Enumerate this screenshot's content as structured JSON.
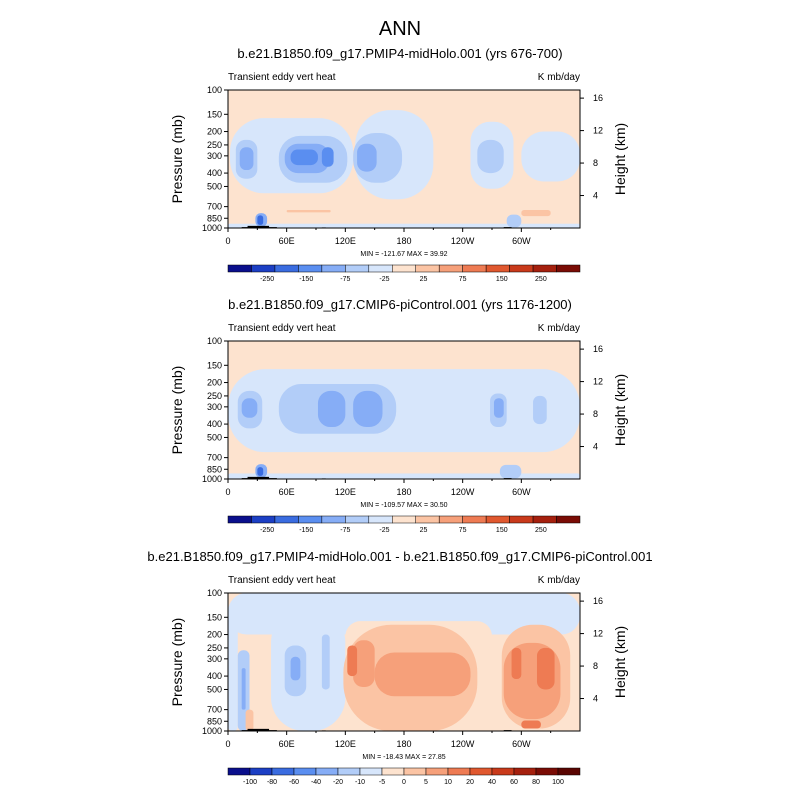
{
  "figure_title": "ANN",
  "chart_data": [
    {
      "type": "heatmap",
      "title": "b.e21.B1850.f09_g17.PMIP4-midHolo.001 (yrs 676-700)",
      "left_label": "Transient eddy vert heat",
      "right_label": "K mb/day",
      "ylabel": "Pressure (mb)",
      "ylabel_right": "Height (km)",
      "x_ticks": [
        "0",
        "60E",
        "120E",
        "180",
        "120W",
        "60W"
      ],
      "y_ticks": [
        "100",
        "150",
        "200",
        "250",
        "300",
        "400",
        "500",
        "700",
        "850",
        "1000"
      ],
      "height_ticks": [
        "16",
        "12",
        "8",
        "4"
      ],
      "stats": "MIN = -121.67  MAX =  39.92",
      "colorbar_labels": [
        "-250",
        "-150",
        "-75",
        "-25",
        "25",
        "75",
        "150",
        "250"
      ],
      "colorbar_colors": [
        "#0a0f8c",
        "#1c3fc4",
        "#3a6ce0",
        "#5a8ef0",
        "#86adf6",
        "#b2cdf8",
        "#d7e6fb",
        "#fde3cf",
        "#fbc4a4",
        "#f6a07a",
        "#ee7b53",
        "#e0582f",
        "#c93a1b",
        "#a5200e",
        "#7a0c05"
      ],
      "xlim": [
        0,
        360
      ],
      "ylim": [
        1000,
        100
      ],
      "background": "#fde3cf",
      "features": [
        {
          "lon": [
            0,
            360
          ],
          "p": [
            930,
            1000
          ],
          "color": "#d7e6fb"
        },
        {
          "lon": [
            0,
            360
          ],
          "p": [
            850,
            930
          ],
          "color": "#fde3cf"
        },
        {
          "lon": [
            2,
            128
          ],
          "p": [
            160,
            560
          ],
          "color": "#d7e6fb"
        },
        {
          "lon": [
            130,
            210
          ],
          "p": [
            140,
            620
          ],
          "color": "#d7e6fb"
        },
        {
          "lon": [
            248,
            292
          ],
          "p": [
            170,
            520
          ],
          "color": "#d7e6fb"
        },
        {
          "lon": [
            300,
            360
          ],
          "p": [
            200,
            460
          ],
          "color": "#d7e6fb"
        },
        {
          "lon": [
            8,
            30
          ],
          "p": [
            230,
            440
          ],
          "color": "#b2cdf8"
        },
        {
          "lon": [
            52,
            122
          ],
          "p": [
            215,
            470
          ],
          "color": "#b2cdf8"
        },
        {
          "lon": [
            128,
            178
          ],
          "p": [
            205,
            470
          ],
          "color": "#b2cdf8"
        },
        {
          "lon": [
            255,
            282
          ],
          "p": [
            230,
            400
          ],
          "color": "#b2cdf8"
        },
        {
          "lon": [
            12,
            26
          ],
          "p": [
            260,
            380
          ],
          "color": "#86adf6"
        },
        {
          "lon": [
            58,
            104
          ],
          "p": [
            245,
            400
          ],
          "color": "#86adf6"
        },
        {
          "lon": [
            132,
            152
          ],
          "p": [
            245,
            390
          ],
          "color": "#86adf6"
        },
        {
          "lon": [
            64,
            92
          ],
          "p": [
            270,
            350
          ],
          "color": "#5a8ef0"
        },
        {
          "lon": [
            96,
            108
          ],
          "p": [
            260,
            360
          ],
          "color": "#5a8ef0"
        },
        {
          "lon": [
            28,
            40
          ],
          "p": [
            780,
            980
          ],
          "color": "#86adf6"
        },
        {
          "lon": [
            30,
            36
          ],
          "p": [
            810,
            950
          ],
          "color": "#3a6ce0"
        },
        {
          "lon": [
            285,
            300
          ],
          "p": [
            800,
            990
          ],
          "color": "#b2cdf8"
        },
        {
          "lon": [
            60,
            105
          ],
          "p": [
            740,
            770
          ],
          "color": "#fbc4a4"
        },
        {
          "lon": [
            300,
            330
          ],
          "p": [
            740,
            820
          ],
          "color": "#fbc4a4"
        }
      ],
      "topography": [
        {
          "lon": [
            20,
            42
          ],
          "p": [
            965,
            1000
          ]
        },
        {
          "lon": [
            14,
            50
          ],
          "p": [
            985,
            1000
          ]
        },
        {
          "lon": [
            282,
            290
          ],
          "p": [
            985,
            1000
          ]
        },
        {
          "lon": [
            96,
            100
          ],
          "p": [
            990,
            1000
          ]
        }
      ]
    },
    {
      "type": "heatmap",
      "title": "b.e21.B1850.f09_g17.CMIP6-piControl.001 (yrs 1176-1200)",
      "left_label": "Transient eddy vert heat",
      "right_label": "K mb/day",
      "ylabel": "Pressure (mb)",
      "ylabel_right": "Height (km)",
      "x_ticks": [
        "0",
        "60E",
        "120E",
        "180",
        "120W",
        "60W"
      ],
      "y_ticks": [
        "100",
        "150",
        "200",
        "250",
        "300",
        "400",
        "500",
        "700",
        "850",
        "1000"
      ],
      "height_ticks": [
        "16",
        "12",
        "8",
        "4"
      ],
      "stats": "MIN = -109.57  MAX =  30.50",
      "colorbar_labels": [
        "-250",
        "-150",
        "-75",
        "-25",
        "25",
        "75",
        "150",
        "250"
      ],
      "colorbar_colors": [
        "#0a0f8c",
        "#1c3fc4",
        "#3a6ce0",
        "#5a8ef0",
        "#86adf6",
        "#b2cdf8",
        "#d7e6fb",
        "#fde3cf",
        "#fbc4a4",
        "#f6a07a",
        "#ee7b53",
        "#e0582f",
        "#c93a1b",
        "#a5200e",
        "#7a0c05"
      ],
      "xlim": [
        0,
        360
      ],
      "ylim": [
        1000,
        100
      ],
      "background": "#fde3cf",
      "features": [
        {
          "lon": [
            0,
            360
          ],
          "p": [
            160,
            640
          ],
          "color": "#d7e6fb"
        },
        {
          "lon": [
            0,
            360
          ],
          "p": [
            910,
            1000
          ],
          "color": "#d7e6fb"
        },
        {
          "lon": [
            0,
            360
          ],
          "p": [
            640,
            910
          ],
          "color": "#fde3cf"
        },
        {
          "lon": [
            10,
            35
          ],
          "p": [
            230,
            430
          ],
          "color": "#b2cdf8"
        },
        {
          "lon": [
            52,
            172
          ],
          "p": [
            205,
            470
          ],
          "color": "#b2cdf8"
        },
        {
          "lon": [
            268,
            285
          ],
          "p": [
            240,
            420
          ],
          "color": "#b2cdf8"
        },
        {
          "lon": [
            312,
            326
          ],
          "p": [
            250,
            400
          ],
          "color": "#b2cdf8"
        },
        {
          "lon": [
            14,
            30
          ],
          "p": [
            260,
            360
          ],
          "color": "#86adf6"
        },
        {
          "lon": [
            92,
            120
          ],
          "p": [
            230,
            420
          ],
          "color": "#86adf6"
        },
        {
          "lon": [
            128,
            158
          ],
          "p": [
            230,
            420
          ],
          "color": "#86adf6"
        },
        {
          "lon": [
            272,
            282
          ],
          "p": [
            260,
            360
          ],
          "color": "#86adf6"
        },
        {
          "lon": [
            28,
            40
          ],
          "p": [
            780,
            980
          ],
          "color": "#86adf6"
        },
        {
          "lon": [
            30,
            36
          ],
          "p": [
            820,
            950
          ],
          "color": "#3a6ce0"
        },
        {
          "lon": [
            278,
            300
          ],
          "p": [
            790,
            990
          ],
          "color": "#b2cdf8"
        }
      ],
      "topography": [
        {
          "lon": [
            20,
            42
          ],
          "p": [
            965,
            1000
          ]
        },
        {
          "lon": [
            14,
            50
          ],
          "p": [
            985,
            1000
          ]
        },
        {
          "lon": [
            282,
            290
          ],
          "p": [
            985,
            1000
          ]
        },
        {
          "lon": [
            96,
            100
          ],
          "p": [
            990,
            1000
          ]
        }
      ]
    },
    {
      "type": "heatmap",
      "title": "b.e21.B1850.f09_g17.PMIP4-midHolo.001 - b.e21.B1850.f09_g17.CMIP6-piControl.001",
      "left_label": "Transient eddy vert heat",
      "right_label": "K mb/day",
      "ylabel": "Pressure (mb)",
      "ylabel_right": "Height (km)",
      "x_ticks": [
        "0",
        "60E",
        "120E",
        "180",
        "120W",
        "60W"
      ],
      "y_ticks": [
        "100",
        "150",
        "200",
        "250",
        "300",
        "400",
        "500",
        "700",
        "850",
        "1000"
      ],
      "height_ticks": [
        "16",
        "12",
        "8",
        "4"
      ],
      "stats": "MIN = -18.43  MAX =  27.85",
      "colorbar_labels": [
        "-100",
        "-80",
        "-60",
        "-40",
        "-20",
        "-10",
        "-5",
        "0",
        "5",
        "10",
        "20",
        "40",
        "60",
        "80",
        "100"
      ],
      "colorbar_colors": [
        "#0a0f8c",
        "#1c3fc4",
        "#3a6ce0",
        "#5a8ef0",
        "#86adf6",
        "#b2cdf8",
        "#d7e6fb",
        "#fde3cf",
        "#fbc4a4",
        "#f6a07a",
        "#ee7b53",
        "#e0582f",
        "#c93a1b",
        "#a5200e",
        "#7a0c05",
        "#5a0502"
      ],
      "xlim": [
        0,
        360
      ],
      "ylim": [
        1000,
        100
      ],
      "background": "#fde3cf",
      "features": [
        {
          "lon": [
            0,
            360
          ],
          "p": [
            100,
            200
          ],
          "color": "#d7e6fb"
        },
        {
          "lon": [
            120,
            270
          ],
          "p": [
            160,
            280
          ],
          "color": "#fde3cf"
        },
        {
          "lon": [
            0,
            10
          ],
          "p": [
            150,
            1000
          ],
          "color": "#d7e6fb"
        },
        {
          "lon": [
            44,
            120
          ],
          "p": [
            130,
            1000
          ],
          "color": "#d7e6fb"
        },
        {
          "lon": [
            118,
            255
          ],
          "p": [
            170,
            1000
          ],
          "color": "#fbc4a4"
        },
        {
          "lon": [
            280,
            350
          ],
          "p": [
            170,
            960
          ],
          "color": "#fbc4a4"
        },
        {
          "lon": [
            128,
            150
          ],
          "p": [
            220,
            480
          ],
          "color": "#f6a07a"
        },
        {
          "lon": [
            150,
            248
          ],
          "p": [
            270,
            560
          ],
          "color": "#f6a07a"
        },
        {
          "lon": [
            282,
            340
          ],
          "p": [
            230,
            820
          ],
          "color": "#f6a07a"
        },
        {
          "lon": [
            122,
            132
          ],
          "p": [
            240,
            400
          ],
          "color": "#ee7b53"
        },
        {
          "lon": [
            290,
            300
          ],
          "p": [
            250,
            420
          ],
          "color": "#ee7b53"
        },
        {
          "lon": [
            316,
            334
          ],
          "p": [
            250,
            500
          ],
          "color": "#ee7b53"
        },
        {
          "lon": [
            58,
            80
          ],
          "p": [
            240,
            560
          ],
          "color": "#b2cdf8"
        },
        {
          "lon": [
            96,
            104
          ],
          "p": [
            200,
            500
          ],
          "color": "#b2cdf8"
        },
        {
          "lon": [
            10,
            22
          ],
          "p": [
            260,
            1000
          ],
          "color": "#b2cdf8"
        },
        {
          "lon": [
            64,
            74
          ],
          "p": [
            290,
            430
          ],
          "color": "#86adf6"
        },
        {
          "lon": [
            14,
            18
          ],
          "p": [
            350,
            700
          ],
          "color": "#86adf6"
        },
        {
          "lon": [
            18,
            26
          ],
          "p": [
            700,
            1000
          ],
          "color": "#fbc4a4"
        },
        {
          "lon": [
            300,
            320
          ],
          "p": [
            840,
            960
          ],
          "color": "#ee7b53"
        }
      ],
      "topography": [
        {
          "lon": [
            20,
            42
          ],
          "p": [
            965,
            1000
          ]
        },
        {
          "lon": [
            14,
            50
          ],
          "p": [
            985,
            1000
          ]
        },
        {
          "lon": [
            282,
            290
          ],
          "p": [
            985,
            1000
          ]
        },
        {
          "lon": [
            96,
            100
          ],
          "p": [
            990,
            1000
          ]
        }
      ]
    }
  ]
}
